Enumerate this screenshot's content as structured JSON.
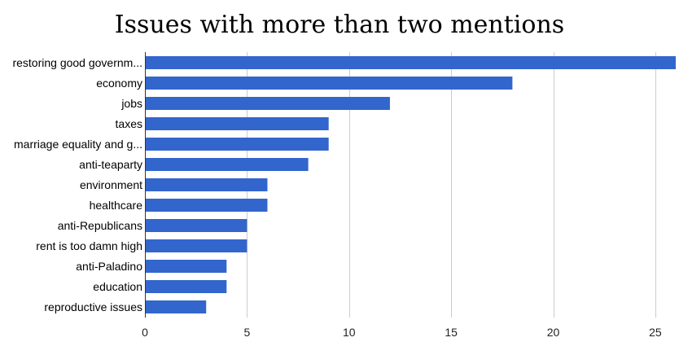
{
  "chart_data": {
    "type": "bar",
    "orientation": "horizontal",
    "title": "Issues with more than two mentions",
    "xlabel": "",
    "ylabel": "",
    "categories": [
      "restoring good governm...",
      "economy",
      "jobs",
      "taxes",
      "marriage equality and g...",
      "anti-teaparty",
      "environment",
      "healthcare",
      "anti-Republicans",
      "rent is too damn high",
      "anti-Paladino",
      "education",
      "reproductive issues"
    ],
    "values": [
      26,
      18,
      12,
      9,
      9,
      8,
      6,
      6,
      5,
      5,
      4,
      4,
      3
    ],
    "xlim": [
      0,
      26
    ],
    "xticks": [
      0,
      5,
      10,
      15,
      20,
      25
    ],
    "grid": true,
    "legend": "none",
    "bar_color": "#3366cc",
    "grid_color": "#cccccc"
  }
}
